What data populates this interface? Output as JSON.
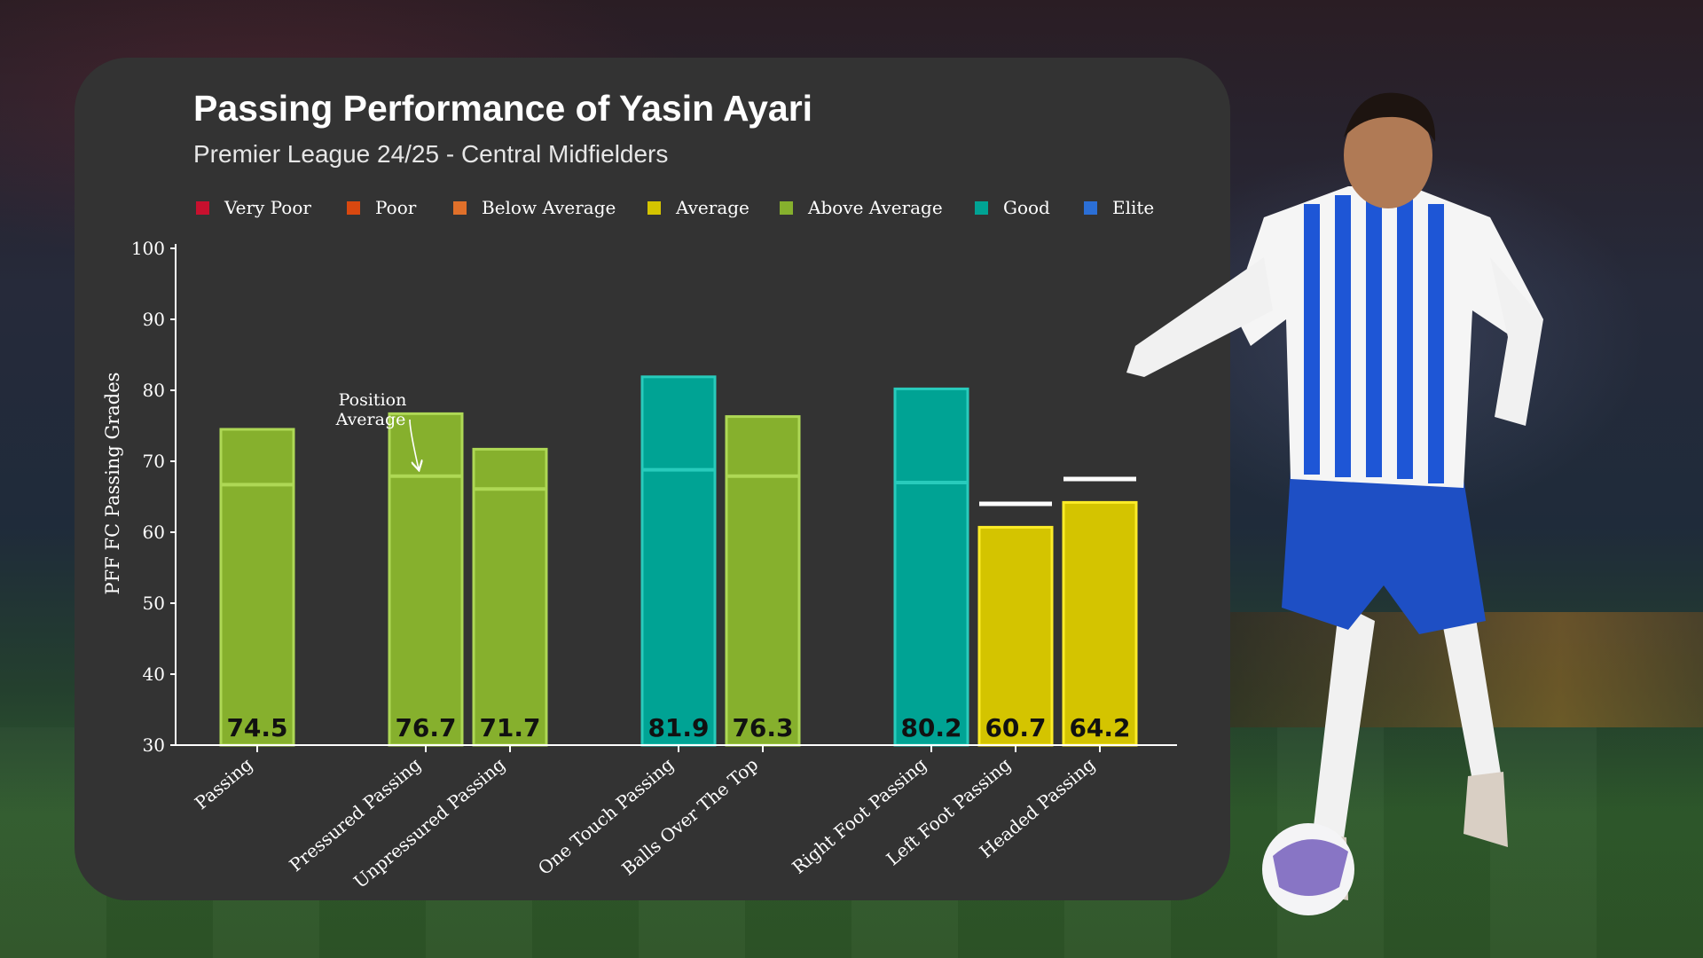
{
  "chart_data": {
    "type": "bar",
    "title": "Passing Performance of Yasin Ayari",
    "subtitle": "Premier League 24/25 - Central Midfielders",
    "ylabel": "PFF FC Passing Grades",
    "xlabel": "",
    "ylim": [
      30,
      100
    ],
    "yticks": [
      30,
      40,
      50,
      60,
      70,
      80,
      90,
      100
    ],
    "legend": {
      "placement": "top",
      "entries": [
        {
          "label": "Very Poor",
          "color": "#c8102e"
        },
        {
          "label": "Poor",
          "color": "#d9480f"
        },
        {
          "label": "Below Average",
          "color": "#e0702a"
        },
        {
          "label": "Average",
          "color": "#d4c400"
        },
        {
          "label": "Above Average",
          "color": "#86b02d"
        },
        {
          "label": "Good",
          "color": "#00a394"
        },
        {
          "label": "Elite",
          "color": "#2b6fd6"
        }
      ]
    },
    "categories": [
      "Passing",
      "Pressured Passing",
      "Unpressured Passing",
      "One Touch Passing",
      "Balls Over The Top",
      "Right Foot Passing",
      "Left Foot Passing",
      "Headed Passing"
    ],
    "groups": [
      [
        0
      ],
      [
        1,
        2
      ],
      [
        3,
        4
      ],
      [
        5,
        6,
        7
      ]
    ],
    "values": [
      74.5,
      76.7,
      71.7,
      81.9,
      76.3,
      80.2,
      60.7,
      64.2
    ],
    "value_labels": [
      "74.5",
      "76.7",
      "71.7",
      "81.9",
      "76.3",
      "80.2",
      "60.7",
      "64.2"
    ],
    "position_average": [
      66.7,
      67.9,
      66.1,
      68.8,
      67.9,
      67.0,
      64.0,
      67.5
    ],
    "ratings": [
      "Above Average",
      "Above Average",
      "Above Average",
      "Good",
      "Above Average",
      "Good",
      "Average",
      "Average"
    ],
    "annotation": {
      "text": [
        "Position",
        "Average"
      ],
      "target_index": 1
    },
    "grid": false
  },
  "colors": {
    "card_background": "#333333",
    "axis": "#ffffff",
    "text": "#ffffff",
    "value_label": "#111111"
  }
}
